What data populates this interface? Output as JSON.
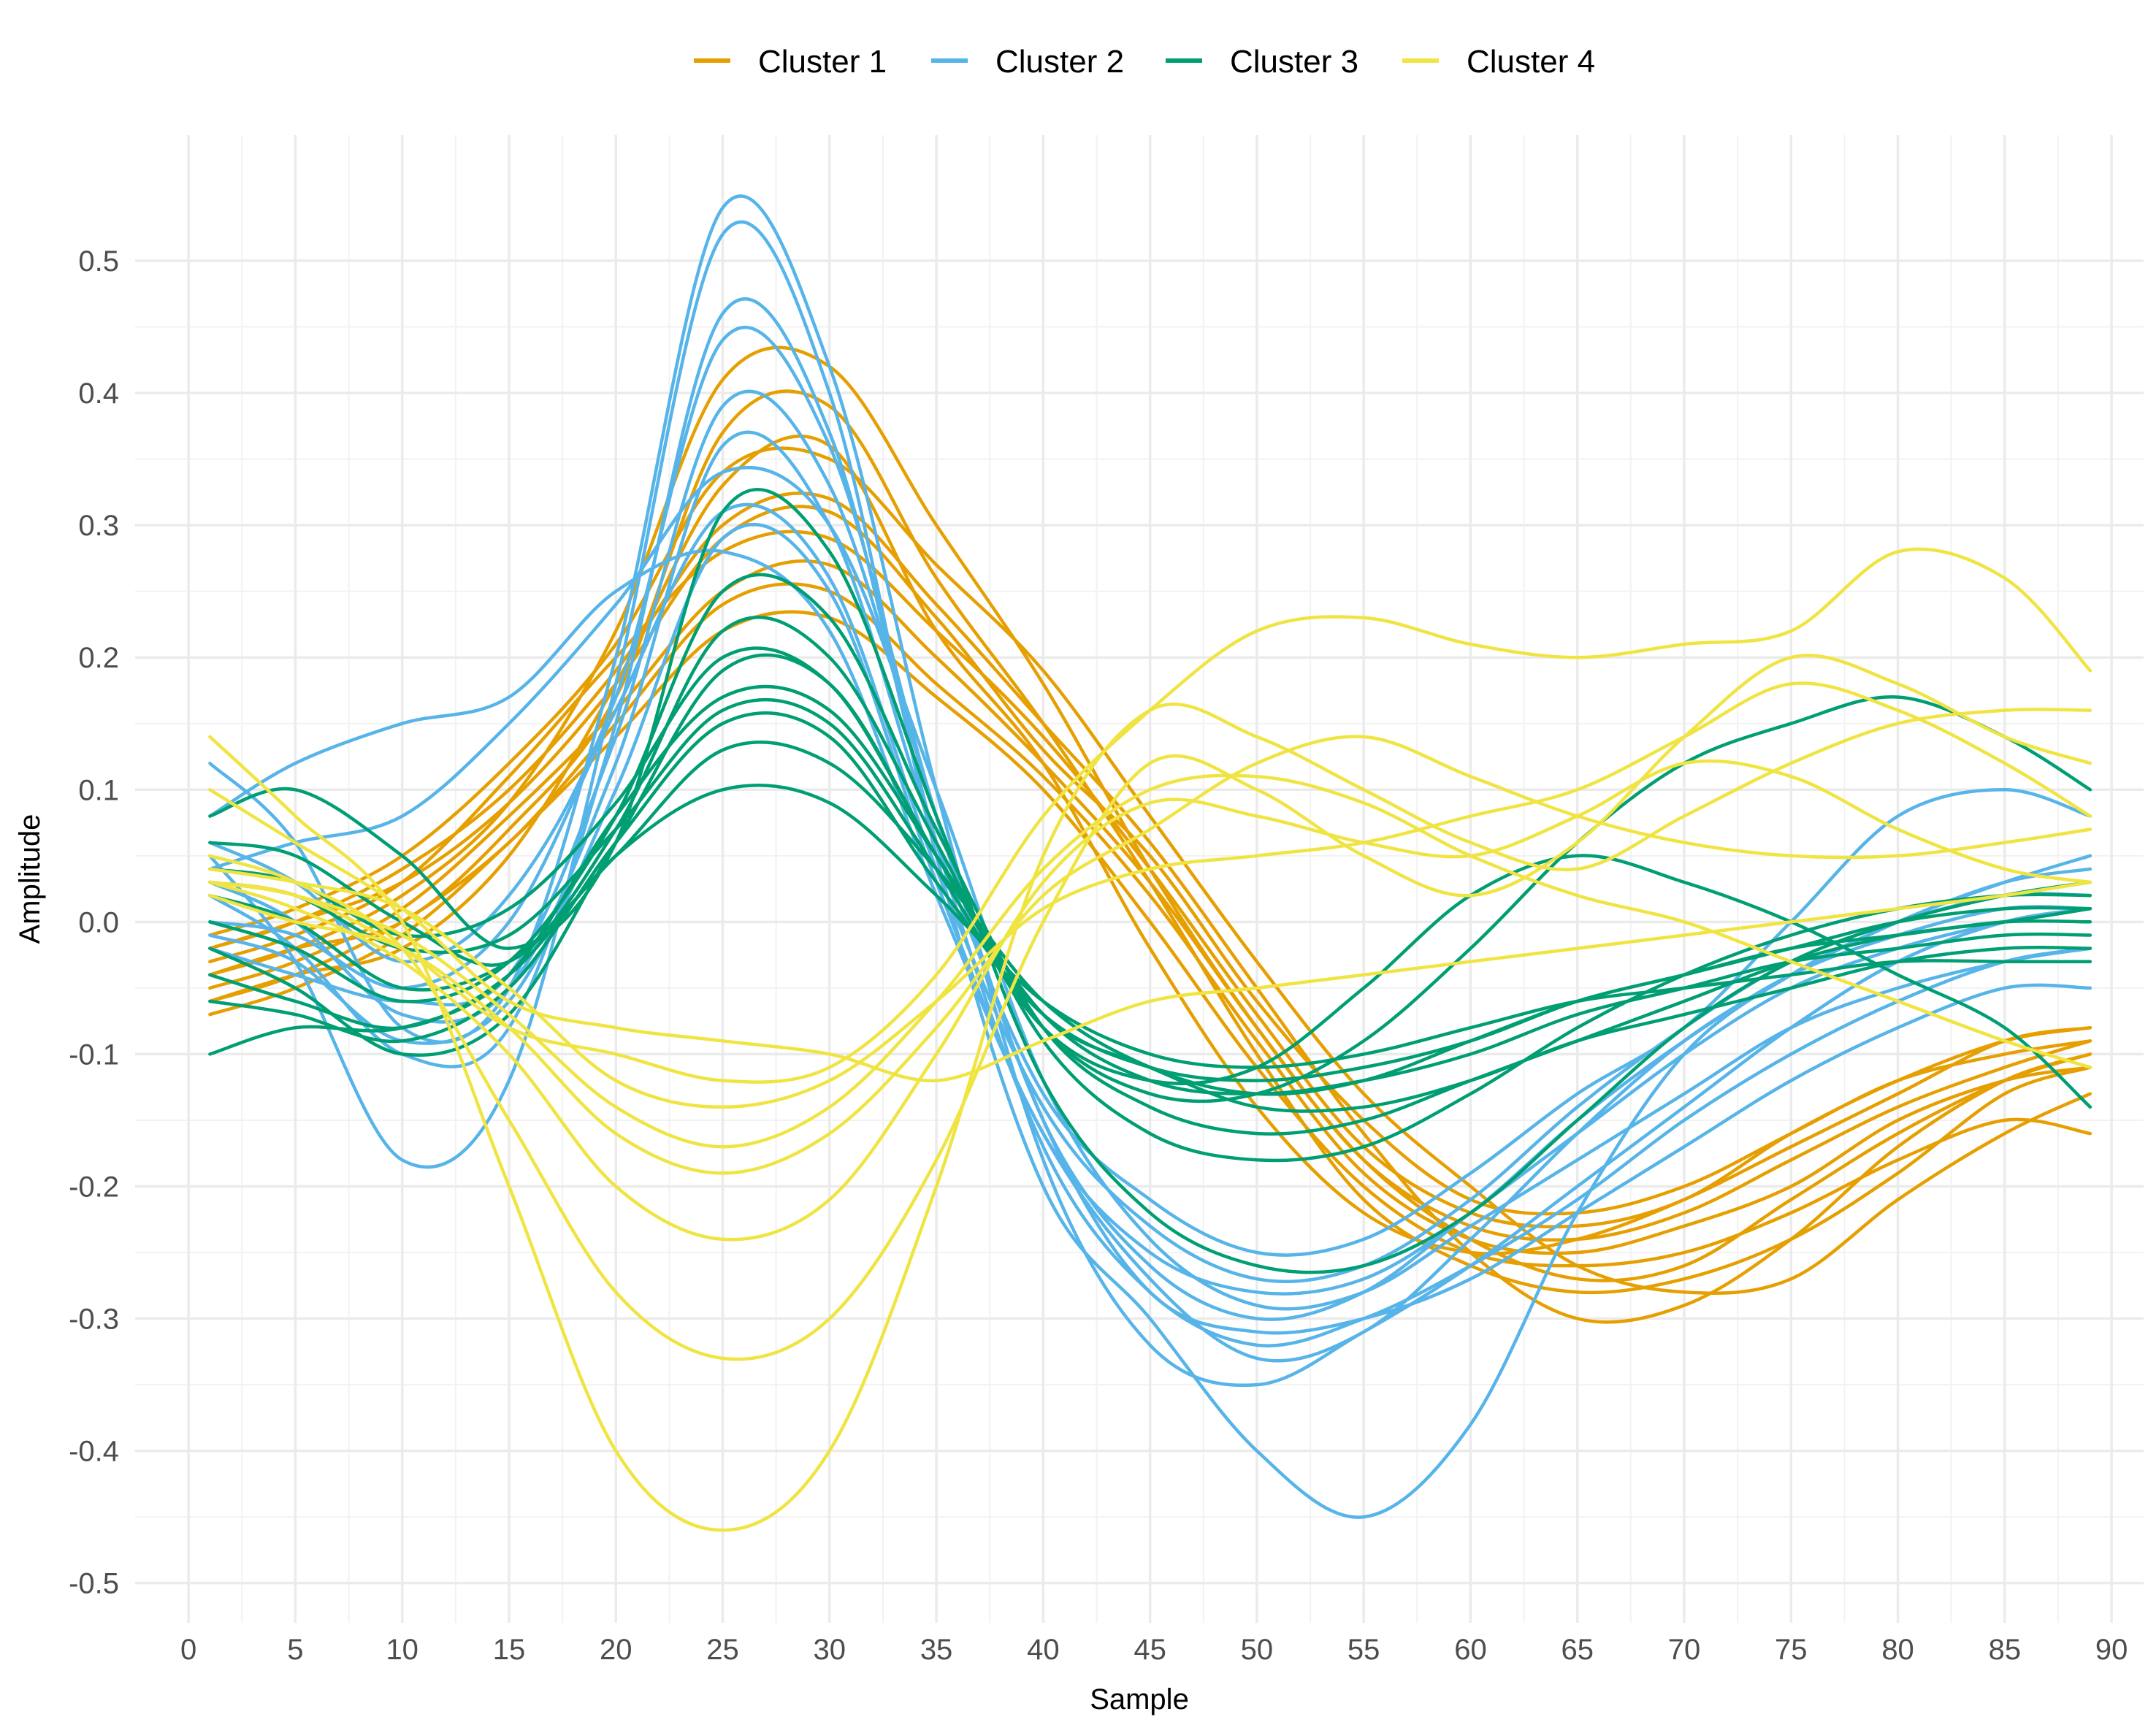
{
  "chart_data": {
    "type": "line",
    "title": "",
    "xlabel": "Sample",
    "ylabel": "Amplitude",
    "xlim": [
      -2.5,
      91.5
    ],
    "ylim": [
      -0.53,
      0.595
    ],
    "x_ticks": [
      0,
      5,
      10,
      15,
      20,
      25,
      30,
      35,
      40,
      45,
      50,
      55,
      60,
      65,
      70,
      75,
      80,
      85,
      90
    ],
    "x_tick_labels": [
      "0",
      "5",
      "10",
      "15",
      "20",
      "25",
      "30",
      "35",
      "40",
      "45",
      "50",
      "55",
      "60",
      "65",
      "70",
      "75",
      "80",
      "85",
      "90"
    ],
    "y_ticks": [
      -0.5,
      -0.4,
      -0.3,
      -0.2,
      -0.1,
      0.0,
      0.1,
      0.2,
      0.3,
      0.4,
      0.5
    ],
    "y_tick_labels": [
      "-0.5",
      "-0.4",
      "-0.3",
      "-0.2",
      "-0.1",
      "0.0",
      "0.1",
      "0.2",
      "0.3",
      "0.4",
      "0.5"
    ],
    "grid": true,
    "legend_position": "top",
    "x_sample_points": [
      1,
      5,
      10,
      15,
      20,
      25,
      30,
      35,
      40,
      45,
      50,
      55,
      60,
      65,
      70,
      75,
      80,
      85,
      89
    ],
    "series": [
      {
        "name": "Cluster 1",
        "color": "#E69F00",
        "curves": [
          [
            -0.06,
            -0.04,
            -0.02,
            0.05,
            0.18,
            0.33,
            0.36,
            0.22,
            0.12,
            -0.02,
            -0.14,
            -0.22,
            -0.25,
            -0.24,
            -0.21,
            -0.17,
            -0.13,
            -0.09,
            -0.08
          ],
          [
            -0.04,
            -0.02,
            0.02,
            0.09,
            0.22,
            0.41,
            0.42,
            0.3,
            0.18,
            0.04,
            -0.08,
            -0.18,
            -0.24,
            -0.27,
            -0.26,
            -0.21,
            -0.16,
            -0.12,
            -0.1
          ],
          [
            -0.02,
            0.0,
            0.04,
            0.1,
            0.19,
            0.3,
            0.32,
            0.24,
            0.15,
            0.06,
            -0.05,
            -0.16,
            -0.25,
            -0.3,
            -0.29,
            -0.24,
            -0.17,
            -0.12,
            -0.1
          ],
          [
            -0.05,
            -0.03,
            0.01,
            0.08,
            0.16,
            0.25,
            0.27,
            0.2,
            0.12,
            0.03,
            -0.08,
            -0.18,
            -0.23,
            -0.24,
            -0.22,
            -0.18,
            -0.14,
            -0.11,
            -0.09
          ],
          [
            -0.03,
            -0.01,
            0.03,
            0.11,
            0.2,
            0.28,
            0.29,
            0.22,
            0.14,
            0.04,
            -0.07,
            -0.17,
            -0.22,
            -0.23,
            -0.21,
            -0.16,
            -0.12,
            -0.09,
            -0.08
          ],
          [
            -0.07,
            -0.05,
            -0.01,
            0.06,
            0.14,
            0.22,
            0.23,
            0.17,
            0.1,
            0.0,
            -0.11,
            -0.2,
            -0.25,
            -0.26,
            -0.25,
            -0.22,
            -0.18,
            -0.15,
            -0.16
          ],
          [
            -0.01,
            0.01,
            0.05,
            0.12,
            0.21,
            0.34,
            0.35,
            0.27,
            0.19,
            0.08,
            -0.03,
            -0.13,
            -0.2,
            -0.26,
            -0.28,
            -0.27,
            -0.21,
            -0.16,
            -0.13
          ],
          [
            -0.04,
            -0.02,
            0.0,
            0.07,
            0.17,
            0.37,
            0.39,
            0.26,
            0.15,
            0.03,
            -0.1,
            -0.21,
            -0.26,
            -0.28,
            -0.27,
            -0.24,
            -0.19,
            -0.13,
            -0.11
          ],
          [
            -0.06,
            -0.04,
            0.0,
            0.06,
            0.15,
            0.24,
            0.25,
            0.18,
            0.11,
            0.02,
            -0.09,
            -0.19,
            -0.24,
            -0.25,
            -0.23,
            -0.2,
            -0.15,
            -0.12,
            -0.11
          ],
          [
            -0.02,
            0.0,
            0.03,
            0.09,
            0.18,
            0.29,
            0.31,
            0.23,
            0.13,
            0.05,
            -0.06,
            -0.15,
            -0.21,
            -0.22,
            -0.2,
            -0.16,
            -0.12,
            -0.1,
            -0.09
          ]
        ]
      },
      {
        "name": "Cluster 2",
        "color": "#56B4E9",
        "curves": [
          [
            0.12,
            0.06,
            -0.08,
            -0.05,
            0.2,
            0.54,
            0.42,
            0.1,
            -0.18,
            -0.32,
            -0.35,
            -0.31,
            -0.26,
            -0.2,
            -0.14,
            -0.08,
            -0.03,
            0.0,
            0.01
          ],
          [
            0.05,
            -0.03,
            -0.18,
            -0.12,
            0.18,
            0.52,
            0.4,
            0.05,
            -0.2,
            -0.3,
            -0.4,
            -0.45,
            -0.38,
            -0.22,
            -0.1,
            -0.04,
            0.0,
            0.03,
            0.05
          ],
          [
            0.02,
            -0.02,
            -0.1,
            -0.08,
            0.15,
            0.46,
            0.37,
            0.06,
            -0.17,
            -0.28,
            -0.32,
            -0.3,
            -0.26,
            -0.21,
            -0.15,
            -0.1,
            -0.06,
            -0.03,
            -0.02
          ],
          [
            0.04,
            0.06,
            0.08,
            0.15,
            0.24,
            0.34,
            0.3,
            0.1,
            -0.12,
            -0.24,
            -0.29,
            -0.28,
            -0.23,
            -0.18,
            -0.13,
            -0.08,
            -0.05,
            -0.03,
            -0.02
          ],
          [
            -0.02,
            -0.04,
            -0.06,
            -0.04,
            0.14,
            0.39,
            0.33,
            0.08,
            -0.15,
            -0.26,
            -0.3,
            -0.28,
            -0.22,
            -0.16,
            -0.1,
            -0.05,
            -0.02,
            0.0,
            0.01
          ],
          [
            0.0,
            -0.01,
            -0.05,
            0.0,
            0.16,
            0.31,
            0.26,
            0.04,
            -0.14,
            -0.23,
            -0.27,
            -0.26,
            -0.21,
            -0.14,
            -0.08,
            -0.03,
            0.0,
            0.02,
            0.02
          ],
          [
            0.08,
            0.12,
            0.15,
            0.17,
            0.25,
            0.28,
            0.22,
            0.02,
            -0.16,
            -0.27,
            -0.33,
            -0.31,
            -0.24,
            -0.16,
            -0.09,
            -0.04,
            0.0,
            0.03,
            0.04
          ],
          [
            0.03,
            0.0,
            -0.07,
            -0.05,
            0.12,
            0.36,
            0.3,
            0.06,
            -0.13,
            -0.21,
            -0.25,
            -0.24,
            -0.19,
            -0.13,
            -0.08,
            0.0,
            0.08,
            0.1,
            0.08
          ],
          [
            -0.01,
            -0.03,
            -0.09,
            -0.06,
            0.1,
            0.29,
            0.25,
            0.03,
            -0.16,
            -0.25,
            -0.28,
            -0.27,
            -0.22,
            -0.15,
            -0.09,
            -0.04,
            -0.01,
            0.01,
            0.01
          ],
          [
            0.06,
            0.03,
            -0.03,
            0.02,
            0.17,
            0.44,
            0.36,
            0.08,
            -0.15,
            -0.28,
            -0.31,
            -0.3,
            -0.27,
            -0.22,
            -0.17,
            -0.12,
            -0.08,
            -0.05,
            -0.05
          ]
        ]
      },
      {
        "name": "Cluster 3",
        "color": "#009E73",
        "curves": [
          [
            -0.1,
            -0.08,
            -0.08,
            -0.04,
            0.08,
            0.17,
            0.16,
            0.05,
            -0.07,
            -0.11,
            -0.14,
            -0.14,
            -0.12,
            -0.09,
            -0.07,
            -0.05,
            -0.03,
            -0.02,
            -0.02
          ],
          [
            0.08,
            0.1,
            0.05,
            -0.02,
            0.06,
            0.31,
            0.28,
            0.08,
            -0.12,
            -0.22,
            -0.26,
            -0.26,
            -0.22,
            -0.15,
            -0.08,
            -0.03,
            0.0,
            0.02,
            0.03
          ],
          [
            0.02,
            0.0,
            -0.05,
            -0.03,
            0.05,
            0.13,
            0.12,
            0.04,
            -0.06,
            -0.11,
            -0.13,
            -0.12,
            -0.09,
            -0.06,
            -0.04,
            -0.02,
            -0.01,
            0.0,
            0.0
          ],
          [
            -0.04,
            -0.06,
            -0.08,
            -0.04,
            0.05,
            0.1,
            0.09,
            0.02,
            -0.06,
            -0.1,
            -0.11,
            -0.1,
            -0.08,
            -0.06,
            -0.05,
            -0.04,
            -0.03,
            -0.03,
            -0.03
          ],
          [
            0.06,
            0.05,
            0.0,
            -0.03,
            0.07,
            0.22,
            0.2,
            0.06,
            -0.09,
            -0.16,
            -0.18,
            -0.17,
            -0.13,
            -0.08,
            -0.04,
            -0.01,
            0.01,
            0.02,
            0.02
          ],
          [
            -0.02,
            -0.05,
            -0.1,
            -0.07,
            0.06,
            0.19,
            0.18,
            0.05,
            -0.08,
            -0.13,
            -0.13,
            -0.09,
            -0.02,
            0.06,
            0.12,
            0.15,
            0.17,
            0.14,
            0.1
          ],
          [
            0.03,
            0.02,
            -0.02,
            -0.01,
            0.07,
            0.16,
            0.15,
            0.04,
            -0.08,
            -0.12,
            -0.11,
            -0.05,
            0.02,
            0.05,
            0.03,
            0.0,
            -0.04,
            -0.08,
            -0.14
          ],
          [
            -0.06,
            -0.07,
            -0.09,
            -0.05,
            0.06,
            0.15,
            0.14,
            0.03,
            -0.07,
            -0.11,
            -0.12,
            -0.11,
            -0.09,
            -0.06,
            -0.04,
            -0.02,
            0.0,
            0.01,
            0.01
          ],
          [
            0.0,
            -0.02,
            -0.06,
            -0.03,
            0.08,
            0.25,
            0.23,
            0.07,
            -0.08,
            -0.14,
            -0.16,
            -0.15,
            -0.12,
            -0.09,
            -0.06,
            -0.03,
            -0.01,
            0.0,
            0.01
          ],
          [
            0.04,
            0.03,
            -0.01,
            0.01,
            0.09,
            0.2,
            0.18,
            0.05,
            -0.07,
            -0.12,
            -0.13,
            -0.12,
            -0.1,
            -0.07,
            -0.05,
            -0.03,
            -0.02,
            -0.01,
            -0.01
          ]
        ]
      },
      {
        "name": "Cluster 4",
        "color": "#F0E442",
        "curves": [
          [
            0.03,
            0.02,
            -0.02,
            -0.08,
            -0.1,
            -0.12,
            -0.11,
            -0.04,
            0.08,
            0.16,
            0.22,
            0.23,
            0.21,
            0.2,
            0.21,
            0.22,
            0.28,
            0.26,
            0.19
          ],
          [
            0.14,
            0.08,
            0.0,
            -0.2,
            -0.4,
            -0.46,
            -0.4,
            -0.2,
            0.05,
            0.16,
            0.14,
            0.1,
            0.06,
            0.04,
            0.08,
            0.12,
            0.15,
            0.16,
            0.16
          ],
          [
            0.05,
            0.03,
            -0.02,
            -0.15,
            -0.28,
            -0.33,
            -0.3,
            -0.18,
            0.0,
            0.12,
            0.1,
            0.05,
            0.02,
            0.06,
            0.14,
            0.2,
            0.18,
            0.14,
            0.12
          ],
          [
            0.03,
            0.01,
            -0.03,
            -0.1,
            -0.2,
            -0.24,
            -0.21,
            -0.1,
            0.03,
            0.09,
            0.08,
            0.06,
            0.05,
            0.08,
            0.12,
            0.11,
            0.07,
            0.04,
            0.03
          ],
          [
            0.02,
            0.0,
            -0.02,
            -0.08,
            -0.16,
            -0.19,
            -0.16,
            -0.08,
            0.02,
            0.07,
            0.12,
            0.14,
            0.11,
            0.08,
            0.06,
            0.05,
            0.05,
            0.06,
            0.07
          ],
          [
            0.04,
            0.03,
            0.01,
            -0.05,
            -0.12,
            -0.14,
            -0.12,
            -0.06,
            0.01,
            0.04,
            0.05,
            0.06,
            0.08,
            0.1,
            0.14,
            0.18,
            0.16,
            0.12,
            0.08
          ],
          [
            0.1,
            0.06,
            0.01,
            -0.06,
            -0.08,
            -0.09,
            -0.1,
            -0.12,
            -0.09,
            -0.06,
            -0.05,
            -0.04,
            -0.03,
            -0.02,
            -0.01,
            0.0,
            0.01,
            0.02,
            0.03
          ],
          [
            0.03,
            0.02,
            -0.01,
            -0.07,
            -0.14,
            -0.17,
            -0.14,
            -0.06,
            0.04,
            0.1,
            0.11,
            0.09,
            0.05,
            0.02,
            0.0,
            -0.03,
            -0.06,
            -0.09,
            -0.11
          ]
        ]
      }
    ]
  }
}
